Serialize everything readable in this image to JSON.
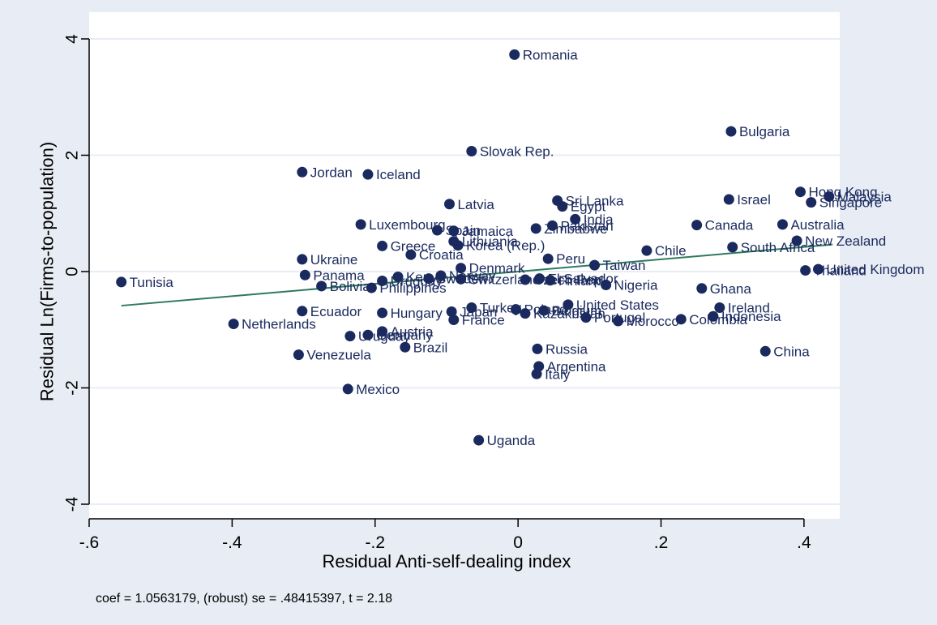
{
  "chart_data": {
    "type": "scatter",
    "title": "",
    "xlabel": "Residual Anti-self-dealing index",
    "ylabel": "Residual Ln(Firms-to-population)",
    "xlim": [
      -0.6,
      0.45
    ],
    "ylim": [
      -4,
      4
    ],
    "xticks": [
      -0.6,
      -0.4,
      -0.2,
      0,
      0.2,
      0.4
    ],
    "xtick_labels": [
      "-.6",
      "-.4",
      "-.2",
      "0",
      ".2",
      ".4"
    ],
    "yticks": [
      -4,
      -2,
      0,
      2,
      4
    ],
    "ytick_labels": [
      "-4",
      "-2",
      "0",
      "2",
      "4"
    ],
    "grid": "horizontal",
    "legend": "none",
    "annotation": "coef = 1.0563179, (robust) se = .48415397, t = 2.18",
    "fit_line": {
      "slope": 1.0563179,
      "intercept": 0.0,
      "x_range": [
        -0.555,
        0.44
      ],
      "color": "#2e7a5e"
    },
    "colors": {
      "background": "#e8ecf4",
      "plot_area": "#ffffff",
      "marker": "#1a2a5e",
      "grid": "#e8ecf4"
    },
    "points": [
      {
        "label": "Romania",
        "x": -0.005,
        "y": 3.73
      },
      {
        "label": "Bulgaria",
        "x": 0.298,
        "y": 2.41
      },
      {
        "label": "Slovak Rep.",
        "x": -0.065,
        "y": 2.07
      },
      {
        "label": "Jordan",
        "x": -0.302,
        "y": 1.71
      },
      {
        "label": "Iceland",
        "x": -0.21,
        "y": 1.67
      },
      {
        "label": "Hong Kong",
        "x": 0.395,
        "y": 1.37
      },
      {
        "label": "Malaysia",
        "x": 0.435,
        "y": 1.29
      },
      {
        "label": "Singapore",
        "x": 0.41,
        "y": 1.19
      },
      {
        "label": "Israel",
        "x": 0.295,
        "y": 1.24
      },
      {
        "label": "Sri Lanka",
        "x": 0.055,
        "y": 1.22
      },
      {
        "label": "Egypt",
        "x": 0.062,
        "y": 1.12
      },
      {
        "label": "Latvia",
        "x": -0.096,
        "y": 1.16
      },
      {
        "label": "India",
        "x": 0.08,
        "y": 0.9
      },
      {
        "label": "Canada",
        "x": 0.25,
        "y": 0.8
      },
      {
        "label": "Australia",
        "x": 0.37,
        "y": 0.81
      },
      {
        "label": "Pakistan",
        "x": 0.048,
        "y": 0.79
      },
      {
        "label": "Zimbabwe",
        "x": 0.025,
        "y": 0.74
      },
      {
        "label": "Luxembourg",
        "x": -0.22,
        "y": 0.81
      },
      {
        "label": "Spain",
        "x": -0.113,
        "y": 0.71
      },
      {
        "label": "Jamaica",
        "x": -0.09,
        "y": 0.7
      },
      {
        "label": "New Zealand",
        "x": 0.39,
        "y": 0.53
      },
      {
        "label": "Lithuania",
        "x": -0.09,
        "y": 0.52
      },
      {
        "label": "Korea (Rep.)",
        "x": -0.084,
        "y": 0.45
      },
      {
        "label": "Greece",
        "x": -0.19,
        "y": 0.44
      },
      {
        "label": "South Africa",
        "x": 0.3,
        "y": 0.42
      },
      {
        "label": "Chile",
        "x": 0.18,
        "y": 0.36
      },
      {
        "label": "Croatia",
        "x": -0.15,
        "y": 0.29
      },
      {
        "label": "Peru",
        "x": 0.042,
        "y": 0.22
      },
      {
        "label": "Ukraine",
        "x": -0.302,
        "y": 0.21
      },
      {
        "label": "Taiwan",
        "x": 0.107,
        "y": 0.11
      },
      {
        "label": "Denmark",
        "x": -0.08,
        "y": 0.06
      },
      {
        "label": "Thailand",
        "x": 0.402,
        "y": 0.02
      },
      {
        "label": "United Kingdom",
        "x": 0.42,
        "y": 0.04
      },
      {
        "label": "Panama",
        "x": -0.298,
        "y": -0.06
      },
      {
        "label": "Kenya",
        "x": -0.168,
        "y": -0.09
      },
      {
        "label": "Norway",
        "x": -0.108,
        "y": -0.07
      },
      {
        "label": "Sweden",
        "x": -0.125,
        "y": -0.12
      },
      {
        "label": "Switzerland",
        "x": -0.08,
        "y": -0.13
      },
      {
        "label": "Czech Rep.",
        "x": 0.01,
        "y": -0.14
      },
      {
        "label": "El Salvador",
        "x": 0.03,
        "y": -0.12
      },
      {
        "label": "Finland",
        "x": 0.045,
        "y": -0.15
      },
      {
        "label": "Tunisia",
        "x": -0.555,
        "y": -0.18
      },
      {
        "label": "Bolivia",
        "x": -0.275,
        "y": -0.25
      },
      {
        "label": "Philippines",
        "x": -0.205,
        "y": -0.28
      },
      {
        "label": "Nigeria",
        "x": 0.123,
        "y": -0.23
      },
      {
        "label": "Ghana",
        "x": 0.257,
        "y": -0.29
      },
      {
        "label": "Uruguay",
        "x": -0.19,
        "y": -0.16
      },
      {
        "label": "United States",
        "x": 0.07,
        "y": -0.57
      },
      {
        "label": "Turkey",
        "x": -0.065,
        "y": -0.62
      },
      {
        "label": "Ireland",
        "x": 0.282,
        "y": -0.62
      },
      {
        "label": "Ecuador",
        "x": -0.302,
        "y": -0.68
      },
      {
        "label": "Hungary",
        "x": -0.19,
        "y": -0.71
      },
      {
        "label": "Japan",
        "x": -0.093,
        "y": -0.69
      },
      {
        "label": "Poland",
        "x": -0.003,
        "y": -0.65
      },
      {
        "label": "Kazakhstan",
        "x": 0.01,
        "y": -0.72
      },
      {
        "label": "Belgium",
        "x": 0.036,
        "y": -0.67
      },
      {
        "label": "Indonesia",
        "x": 0.273,
        "y": -0.77
      },
      {
        "label": "Portugal",
        "x": 0.095,
        "y": -0.79
      },
      {
        "label": "Colombia",
        "x": 0.228,
        "y": -0.82
      },
      {
        "label": "France",
        "x": -0.09,
        "y": -0.83
      },
      {
        "label": "Morocco",
        "x": 0.14,
        "y": -0.85
      },
      {
        "label": "Netherlands",
        "x": -0.398,
        "y": -0.9
      },
      {
        "label": "Austria",
        "x": -0.19,
        "y": -1.03
      },
      {
        "label": "Germany",
        "x": -0.21,
        "y": -1.09
      },
      {
        "label": "Uruguay",
        "x": -0.235,
        "y": -1.11
      },
      {
        "label": "Brazil",
        "x": -0.158,
        "y": -1.3
      },
      {
        "label": "Russia",
        "x": 0.027,
        "y": -1.33
      },
      {
        "label": "China",
        "x": 0.346,
        "y": -1.37
      },
      {
        "label": "Venezuela",
        "x": -0.307,
        "y": -1.43
      },
      {
        "label": "Argentina",
        "x": 0.029,
        "y": -1.63
      },
      {
        "label": "Italy",
        "x": 0.026,
        "y": -1.76
      },
      {
        "label": "Mexico",
        "x": -0.238,
        "y": -2.02
      },
      {
        "label": "Uganda",
        "x": -0.055,
        "y": -2.9
      }
    ]
  }
}
